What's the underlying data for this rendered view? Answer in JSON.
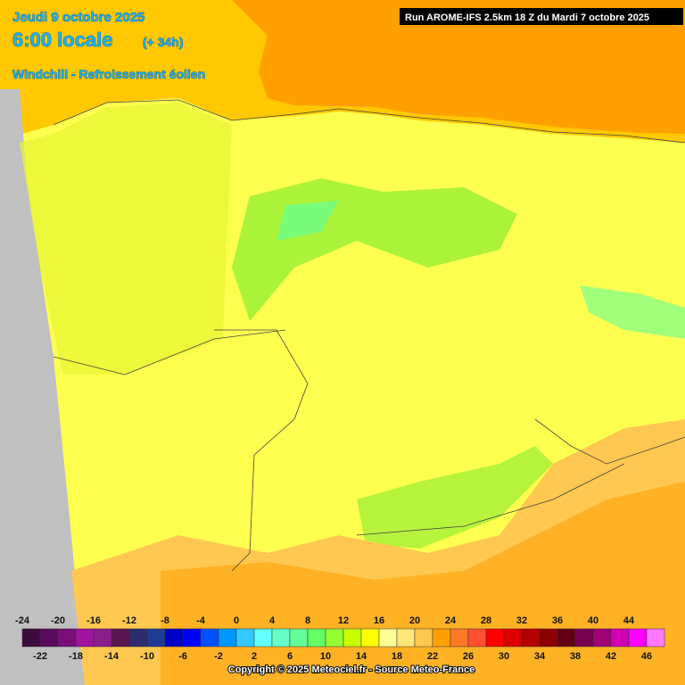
{
  "header": {
    "date": "Jeudi 9 octobre 2025",
    "time": "6:00 locale",
    "lead": "(+ 34h)",
    "subtitle": "Windchill - Refroissement éolien",
    "run": "Run AROME-IFS 2.5km 18 Z du Mardi 7 octobre 2025"
  },
  "legend": {
    "values": [
      -24,
      -22,
      -20,
      -18,
      -16,
      -14,
      -12,
      -10,
      -8,
      -6,
      -4,
      -2,
      0,
      2,
      4,
      6,
      8,
      10,
      12,
      14,
      16,
      18,
      20,
      22,
      24,
      26,
      28,
      30,
      32,
      34,
      36,
      38,
      40,
      42,
      44,
      46
    ],
    "colors": [
      "#3c0a3c",
      "#5a0a5a",
      "#780f78",
      "#a014a0",
      "#8c1e8c",
      "#5a1450",
      "#2d2d6e",
      "#1e3c96",
      "#0000c8",
      "#0000ff",
      "#0050ff",
      "#0096ff",
      "#32c8ff",
      "#64ffff",
      "#64ffc8",
      "#64ff96",
      "#64ff64",
      "#96ff32",
      "#c8ff00",
      "#ffff00",
      "#ffff96",
      "#ffe678",
      "#ffc850",
      "#ffa000",
      "#ff7828",
      "#ff5032",
      "#ff0000",
      "#dc0000",
      "#b40000",
      "#8c0000",
      "#640014",
      "#780050",
      "#a00078",
      "#d200b4",
      "#ff00ff",
      "#ff78ff"
    ]
  },
  "copyright": "Copyright © 2025 Meteociel.fr - Source Meteo-France"
}
